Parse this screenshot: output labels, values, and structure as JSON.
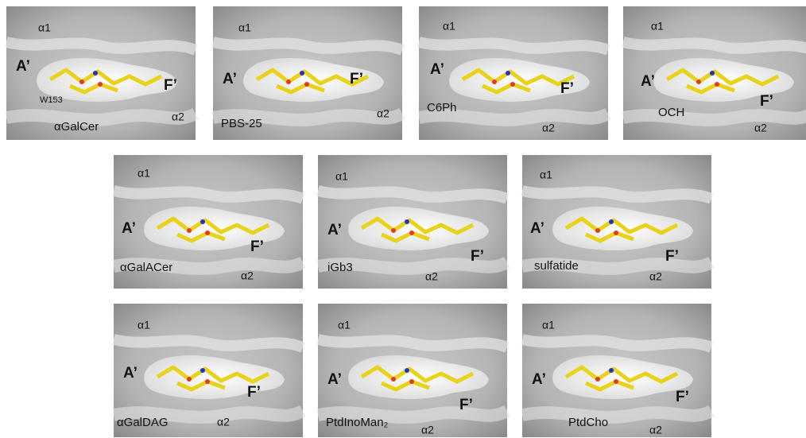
{
  "panels": [
    {
      "ligand": "αGalCer",
      "alpha1": "α1",
      "alpha2": "α2",
      "a_prime": "A’",
      "f_prime": "F’",
      "residue": "W153"
    },
    {
      "ligand": "PBS-25",
      "alpha1": "α1",
      "alpha2": "α2",
      "a_prime": "A’",
      "f_prime": "F’"
    },
    {
      "ligand": "C6Ph",
      "alpha1": "α1",
      "alpha2": "α2",
      "a_prime": "A’",
      "f_prime": "F’"
    },
    {
      "ligand": "OCH",
      "alpha1": "α1",
      "alpha2": "α2",
      "a_prime": "A’",
      "f_prime": "F’"
    },
    {
      "ligand": "αGalACer",
      "alpha1": "α1",
      "alpha2": "α2",
      "a_prime": "A’",
      "f_prime": "F’"
    },
    {
      "ligand": "iGb3",
      "alpha1": "α1",
      "alpha2": "α2",
      "a_prime": "A’",
      "f_prime": "F’"
    },
    {
      "ligand": "sulfatide",
      "alpha1": "α1",
      "alpha2": "α2",
      "a_prime": "A’",
      "f_prime": "F’"
    },
    {
      "ligand": "αGalDAG",
      "alpha1": "α1",
      "alpha2": "α2",
      "a_prime": "A’",
      "f_prime": "F’"
    },
    {
      "ligand": "PtdInoMan₂",
      "alpha1": "α1",
      "alpha2": "α2",
      "a_prime": "A’",
      "f_prime": "F’"
    },
    {
      "ligand": "PtdCho",
      "alpha1": "α1",
      "alpha2": "α2",
      "a_prime": "A’",
      "f_prime": "F’"
    }
  ]
}
